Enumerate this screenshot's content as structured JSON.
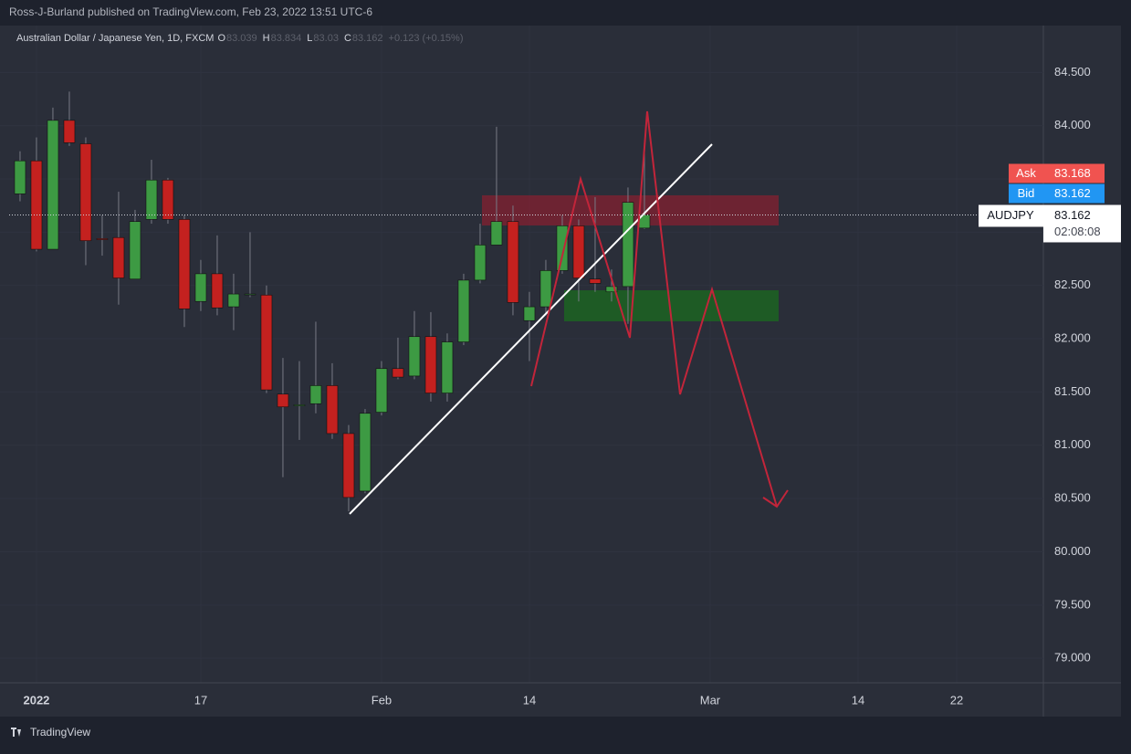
{
  "header": {
    "publisher": "Ross-J-Burland published on TradingView.com, Feb 23, 2022 13:51 UTC-6",
    "footer": "TradingView"
  },
  "chart_data": {
    "type": "candlestick",
    "title": "Australian Dollar / Japanese Yen, 1D, FXCM",
    "legend": {
      "o": "O",
      "h": "H",
      "l": "L",
      "c": "C",
      "change": "+0.123 (+0.15%)"
    },
    "symbol": "AUDJPY",
    "countdown": "02:08:08",
    "ask": {
      "label": "Ask",
      "value": 83.168
    },
    "bid": {
      "label": "Bid",
      "value": 83.162
    },
    "up_color": "#3d9a43",
    "down_color": "#c4211f",
    "xlim": [
      -1.22,
      62.28
    ],
    "xticks": [
      {
        "value": 1,
        "label": "2022"
      },
      {
        "value": 11,
        "label": "17"
      },
      {
        "value": 22,
        "label": "Feb"
      },
      {
        "value": 31,
        "label": "14"
      },
      {
        "value": 42,
        "label": "Mar"
      },
      {
        "value": 51,
        "label": "14"
      },
      {
        "value": 57,
        "label": "22"
      }
    ],
    "ylim": [
      78.77,
      84.94
    ],
    "yticks": [
      {
        "value": 79,
        "label": "79.000"
      },
      {
        "value": 79.5,
        "label": "79.500"
      },
      {
        "value": 80,
        "label": "80.000"
      },
      {
        "value": 80.5,
        "label": "80.500"
      },
      {
        "value": 81,
        "label": "81.000"
      },
      {
        "value": 81.5,
        "label": "81.500"
      },
      {
        "value": 82,
        "label": "82.000"
      },
      {
        "value": 82.5,
        "label": "82.500"
      },
      {
        "value": 83,
        "label": "83.000"
      },
      {
        "value": 83.5,
        "label": "83.500"
      },
      {
        "value": 84,
        "label": "84.000"
      },
      {
        "value": 84.5,
        "label": "84.500"
      }
    ],
    "candles": {
      "x": [
        0,
        1,
        2,
        3,
        4,
        5,
        6,
        7,
        8,
        9,
        10,
        11,
        12,
        13,
        14,
        15,
        16,
        17,
        18,
        19,
        20,
        21,
        22,
        23,
        24,
        25,
        26,
        27,
        28,
        29,
        30,
        31,
        32,
        33,
        34,
        35,
        36,
        37,
        38
      ],
      "open": [
        83.36,
        83.67,
        82.84,
        84.05,
        83.83,
        82.94,
        82.95,
        82.56,
        83.12,
        83.49,
        83.12,
        82.35,
        82.61,
        82.3,
        82.42,
        82.41,
        81.48,
        81.37,
        81.39,
        81.56,
        81.11,
        80.57,
        81.31,
        81.72,
        81.65,
        82.02,
        81.49,
        81.97,
        82.55,
        82.88,
        83.1,
        82.17,
        82.3,
        82.64,
        83.06,
        82.56,
        82.44,
        82.49,
        83.039
      ],
      "high": [
        83.76,
        83.89,
        84.17,
        84.32,
        83.89,
        83.16,
        83.38,
        83.21,
        83.68,
        83.51,
        83.16,
        82.74,
        82.97,
        82.61,
        83.0,
        82.5,
        81.82,
        81.79,
        82.16,
        81.77,
        81.19,
        81.34,
        81.79,
        82.01,
        82.26,
        82.25,
        82.05,
        82.61,
        83.08,
        83.99,
        83.25,
        82.44,
        82.74,
        83.16,
        83.12,
        83.33,
        82.65,
        83.42,
        83.834
      ],
      "low": [
        83.29,
        82.82,
        82.84,
        83.81,
        82.69,
        82.78,
        82.32,
        82.56,
        83.08,
        83.08,
        82.11,
        82.26,
        82.22,
        82.08,
        82.39,
        81.49,
        80.7,
        81.05,
        81.3,
        81.06,
        80.38,
        80.55,
        81.28,
        81.62,
        81.62,
        81.41,
        81.41,
        81.94,
        82.52,
        82.88,
        82.22,
        81.79,
        82.22,
        82.61,
        82.35,
        82.44,
        82.35,
        82.14,
        83.03
      ],
      "close": [
        83.67,
        82.84,
        84.05,
        83.84,
        82.92,
        82.93,
        82.57,
        83.1,
        83.49,
        83.12,
        82.28,
        82.61,
        82.29,
        82.42,
        82.42,
        81.52,
        81.36,
        81.38,
        81.56,
        81.11,
        80.51,
        81.3,
        81.72,
        81.64,
        82.02,
        81.49,
        81.97,
        82.55,
        82.88,
        83.1,
        82.34,
        82.3,
        82.64,
        83.06,
        82.57,
        82.52,
        82.49,
        83.28,
        83.162
      ]
    }
  }
}
